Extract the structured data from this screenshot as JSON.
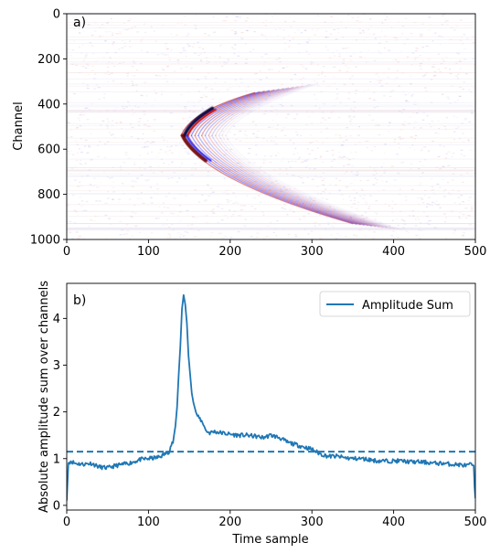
{
  "chart_data": [
    {
      "type": "heatmap",
      "panel_label": "a)",
      "ylabel": "Channel",
      "xlabel": "",
      "xlim": [
        0,
        500
      ],
      "ylim": [
        1000,
        0
      ],
      "y_inverted": true,
      "x_ticks": [
        0,
        100,
        200,
        300,
        400,
        500
      ],
      "y_ticks": [
        0,
        200,
        400,
        600,
        800,
        1000
      ],
      "colormap": "seismic (blue-white-red)",
      "colors": {
        "positive": "#c00000",
        "negative": "#1a1aff",
        "zero": "#ffffff"
      },
      "event": {
        "apex_time_sample": 140,
        "apex_channel": 540,
        "upper_branch_end": {
          "time_sample": 230,
          "channel": 350
        },
        "lower_branch_end": {
          "time_sample": 350,
          "channel": 930
        }
      }
    },
    {
      "type": "line",
      "panel_label": "b)",
      "xlabel": "Time sample",
      "ylabel": "Absolute amplitude sum over channels",
      "xlim": [
        0,
        500
      ],
      "ylim": [
        -0.1,
        4.75
      ],
      "x_ticks": [
        0,
        100,
        200,
        300,
        400,
        500
      ],
      "y_ticks": [
        0,
        1,
        2,
        3,
        4
      ],
      "legend_position": "top-right",
      "series": [
        {
          "name": "Amplitude Sum",
          "color": "#1f77b4",
          "style": "solid",
          "x": [
            0,
            2,
            5,
            10,
            20,
            30,
            40,
            50,
            60,
            70,
            80,
            90,
            100,
            110,
            115,
            120,
            125,
            128,
            130,
            133,
            135,
            137,
            139,
            141,
            143,
            145,
            147,
            149,
            151,
            153,
            155,
            158,
            160,
            163,
            165,
            168,
            170,
            175,
            180,
            190,
            200,
            210,
            220,
            230,
            240,
            250,
            260,
            270,
            280,
            290,
            300,
            310,
            320,
            330,
            340,
            350,
            360,
            370,
            380,
            390,
            400,
            410,
            420,
            430,
            440,
            450,
            460,
            470,
            480,
            490,
            495,
            498,
            499,
            500
          ],
          "y": [
            0.1,
            0.9,
            0.95,
            0.9,
            0.88,
            0.9,
            0.82,
            0.8,
            0.85,
            0.88,
            0.92,
            0.98,
            1.0,
            1.02,
            1.05,
            1.1,
            1.15,
            1.3,
            1.35,
            1.7,
            2.1,
            2.8,
            3.4,
            4.2,
            4.5,
            4.3,
            3.9,
            3.2,
            2.8,
            2.4,
            2.2,
            2.0,
            1.9,
            1.85,
            1.8,
            1.72,
            1.6,
            1.55,
            1.58,
            1.55,
            1.52,
            1.5,
            1.5,
            1.48,
            1.45,
            1.5,
            1.45,
            1.35,
            1.3,
            1.25,
            1.2,
            1.1,
            1.05,
            1.05,
            1.02,
            1.0,
            1.0,
            0.98,
            0.95,
            0.95,
            0.95,
            0.95,
            0.93,
            0.93,
            0.92,
            0.9,
            0.9,
            0.88,
            0.87,
            0.85,
            0.88,
            0.85,
            0.4,
            0.15
          ]
        },
        {
          "name": "",
          "color": "#1f77b4",
          "style": "dashed",
          "x": [
            0,
            500
          ],
          "y": [
            1.15,
            1.15
          ]
        }
      ]
    }
  ]
}
